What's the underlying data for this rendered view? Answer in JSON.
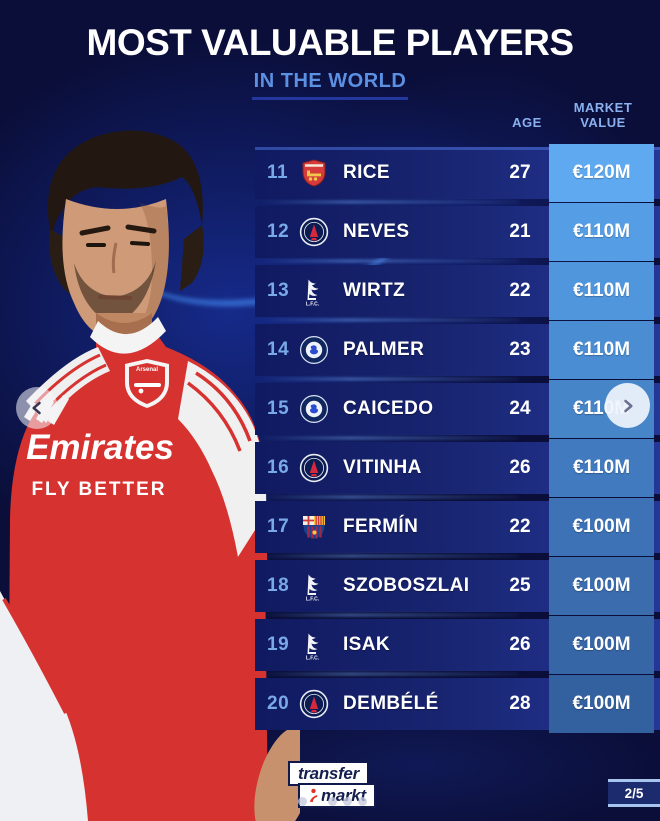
{
  "page": {
    "background": "#0a0e38",
    "accent_blue": "#5c90e2"
  },
  "header": {
    "title": "MOST VALUABLE PLAYERS",
    "subtitle": "IN THE WORLD"
  },
  "columns": {
    "age": "AGE",
    "market_value_line1": "MARKET",
    "market_value_line2": "VALUE"
  },
  "rows": [
    {
      "rank": "11",
      "club": "arsenal",
      "name": "RICE",
      "age": "27",
      "value": "€120M",
      "value_bg": "#5fa9f0"
    },
    {
      "rank": "12",
      "club": "psg",
      "name": "NEVES",
      "age": "21",
      "value": "€110M",
      "value_bg": "#559de5"
    },
    {
      "rank": "13",
      "club": "liverpool",
      "name": "WIRTZ",
      "age": "22",
      "value": "€110M",
      "value_bg": "#5096dd"
    },
    {
      "rank": "14",
      "club": "chelsea",
      "name": "PALMER",
      "age": "23",
      "value": "€110M",
      "value_bg": "#4b8dd3"
    },
    {
      "rank": "15",
      "club": "chelsea",
      "name": "CAICEDO",
      "age": "24",
      "value": "€110M",
      "value_bg": "#4785c9"
    },
    {
      "rank": "16",
      "club": "psg",
      "name": "VITINHA",
      "age": "26",
      "value": "€110M",
      "value_bg": "#417abf"
    },
    {
      "rank": "17",
      "club": "barcelona",
      "name": "FERMÍN",
      "age": "22",
      "value": "€100M",
      "value_bg": "#3d72b6"
    },
    {
      "rank": "18",
      "club": "liverpool",
      "name": "SZOBOSZLAI",
      "age": "25",
      "value": "€100M",
      "value_bg": "#3a6cae"
    },
    {
      "rank": "19",
      "club": "liverpool",
      "name": "ISAK",
      "age": "26",
      "value": "€100M",
      "value_bg": "#3766a6"
    },
    {
      "rank": "20",
      "club": "psg",
      "name": "DEMBÉLÉ",
      "age": "28",
      "value": "€100M",
      "value_bg": "#33609e"
    }
  ],
  "clubs": {
    "liverpool_label": "L.F.C."
  },
  "carousel": {
    "page_indicator": "2/5",
    "dot_count": 5,
    "active_dot_index": 1
  },
  "footer_logo": {
    "line1": "transfer",
    "line2": "markt"
  },
  "player_photo": {
    "sponsor": "Emirates",
    "sponsor_tagline": "FLY BETTER",
    "crest_label": "Arsenal"
  }
}
